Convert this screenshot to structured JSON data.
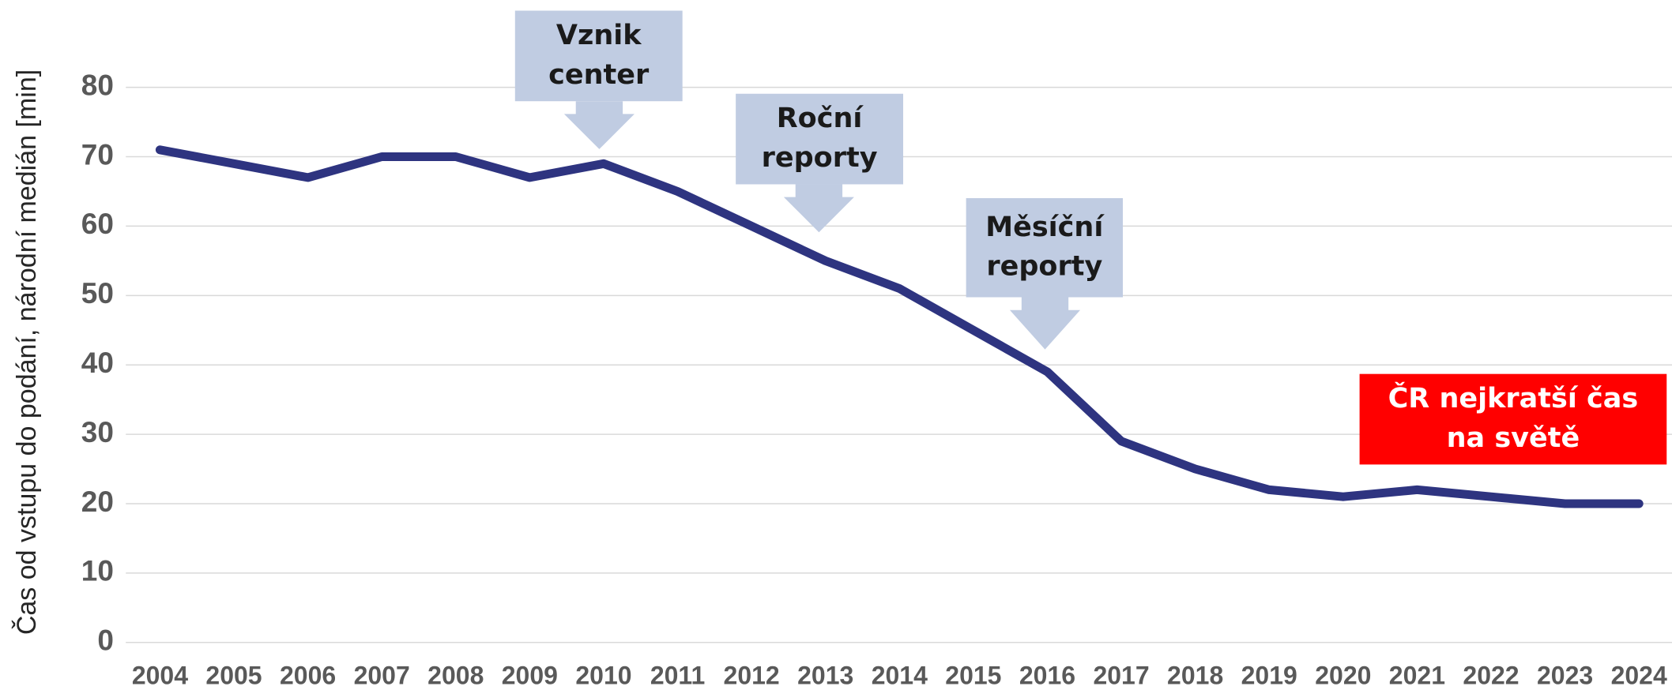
{
  "chart_data": {
    "type": "line",
    "y_label": "Čas od vstupu do podání, národní medián [min]",
    "categories": [
      "2004",
      "2005",
      "2006",
      "2007",
      "2008",
      "2009",
      "2010",
      "2011",
      "2012",
      "2013",
      "2014",
      "2015",
      "2016",
      "2017",
      "2018",
      "2019",
      "2020",
      "2021",
      "2022",
      "2023",
      "2024"
    ],
    "series": [
      {
        "name": "medián",
        "color": "#2e3480",
        "values": [
          71,
          69,
          67,
          70,
          70,
          67,
          69,
          65,
          60,
          55,
          51,
          45,
          39,
          29,
          25,
          22,
          21,
          22,
          21,
          20,
          20
        ]
      }
    ],
    "ylim": [
      0,
      80
    ],
    "yticks": [
      0,
      10,
      20,
      30,
      40,
      50,
      60,
      70,
      80
    ],
    "grid": true,
    "annotations": [
      {
        "lines": [
          "Vznik",
          "center"
        ]
      },
      {
        "lines": [
          "Roční",
          "reporty"
        ]
      },
      {
        "lines": [
          "Měsíční",
          "reporty"
        ]
      },
      {
        "lines": [
          "ČR nejkratší čas",
          "na světě"
        ]
      }
    ]
  }
}
